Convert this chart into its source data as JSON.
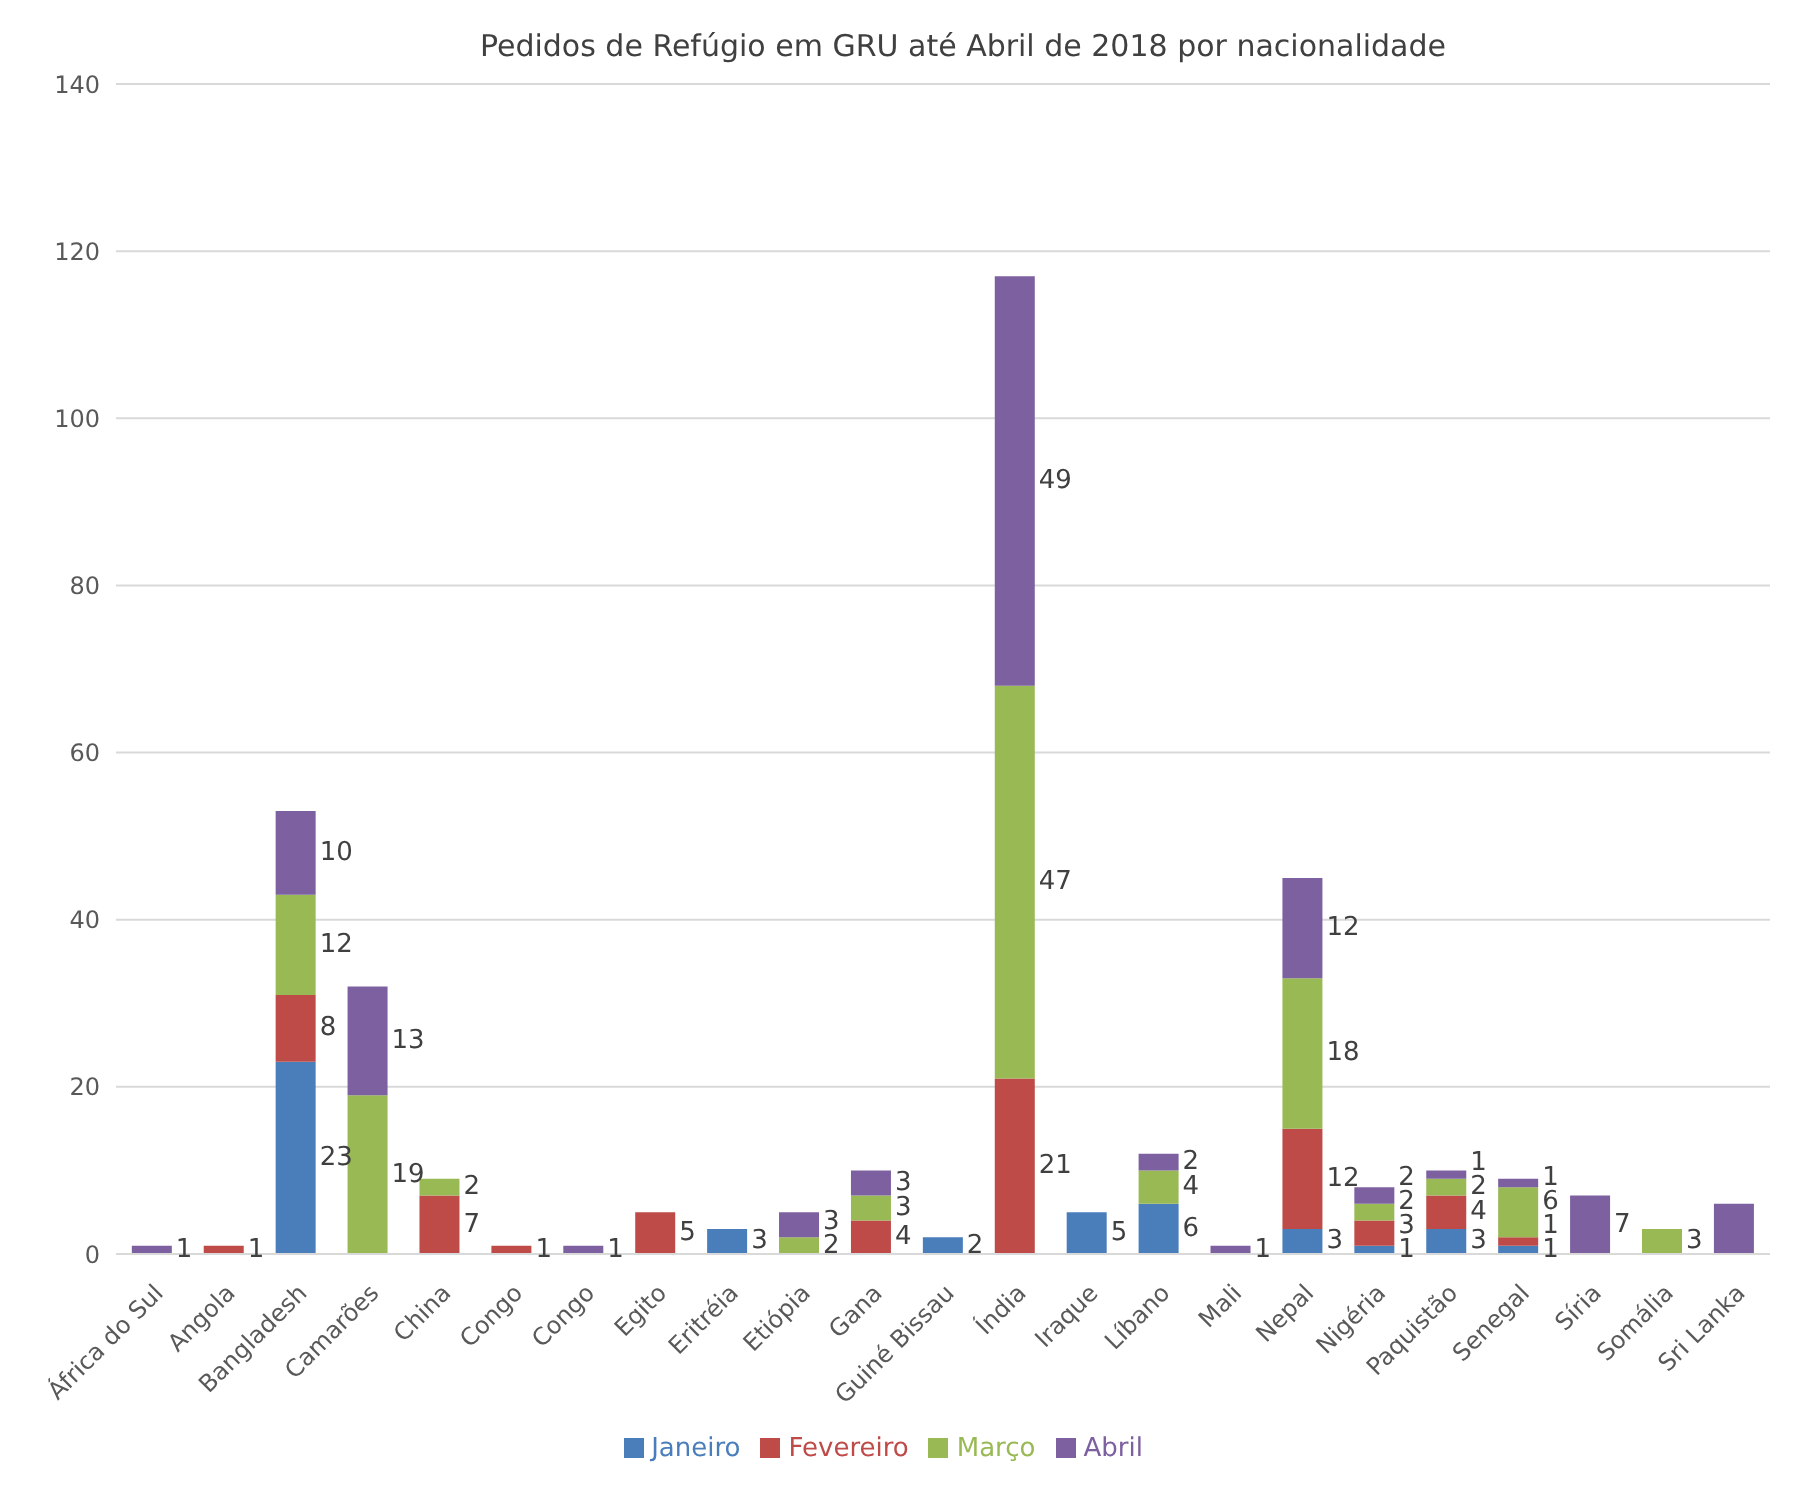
{
  "chart_data": {
    "type": "bar",
    "stacked": true,
    "title": "Pedidos de Refúgio em GRU até Abril de 2018 por nacionalidade",
    "categories": [
      "África do Sul",
      "Angola",
      "Bangladesh",
      "Camarões",
      "China",
      "Congo",
      "Congo",
      "Egito",
      "Eritréia",
      "Etiópia",
      "Gana",
      "Guiné Bissau",
      "Índia",
      "Iraque",
      "Líbano",
      "Mali",
      "Nepal",
      "Nigéria",
      "Paquistão",
      "Senegal",
      "Síria",
      "Somália",
      "Sri Lanka"
    ],
    "series": [
      {
        "name": "Janeiro",
        "color": "#4a7ebb",
        "values": [
          null,
          null,
          23,
          null,
          null,
          null,
          null,
          null,
          3,
          null,
          null,
          2,
          null,
          5,
          6,
          null,
          3,
          1,
          3,
          1,
          null,
          null,
          null
        ],
        "value_labels": [
          null,
          null,
          "23",
          null,
          null,
          null,
          null,
          null,
          "3",
          null,
          null,
          "2",
          null,
          "5",
          "6",
          null,
          "3",
          "1",
          "3",
          "1",
          null,
          null,
          null
        ]
      },
      {
        "name": "Fevereiro",
        "color": "#be4b48",
        "values": [
          null,
          1,
          8,
          null,
          7,
          1,
          null,
          5,
          null,
          null,
          4,
          null,
          21,
          null,
          null,
          null,
          12,
          3,
          4,
          1,
          null,
          null,
          null
        ],
        "value_labels": [
          null,
          "1",
          "8",
          null,
          "7",
          "1",
          null,
          "5",
          null,
          null,
          "4",
          null,
          "21",
          null,
          null,
          null,
          "12",
          "3",
          "4",
          "1",
          null,
          null,
          null
        ]
      },
      {
        "name": "Março",
        "color": "#98b954",
        "values": [
          null,
          null,
          12,
          19,
          2,
          null,
          null,
          null,
          null,
          2,
          3,
          null,
          47,
          null,
          4,
          null,
          18,
          2,
          2,
          6,
          null,
          3,
          null
        ],
        "value_labels": [
          null,
          null,
          "12",
          "19",
          "2",
          null,
          null,
          null,
          null,
          "2",
          "3",
          null,
          "47",
          null,
          "4",
          null,
          "18",
          "2",
          "2",
          "6",
          null,
          "3",
          null
        ]
      },
      {
        "name": "Abril",
        "color": "#7d60a0",
        "values": [
          1,
          null,
          10,
          13,
          null,
          null,
          1,
          null,
          null,
          3,
          3,
          null,
          49,
          null,
          2,
          1,
          12,
          2,
          1,
          1,
          7,
          null,
          6
        ],
        "value_labels": [
          "1",
          null,
          "10",
          "13",
          null,
          null,
          "1",
          null,
          null,
          "3",
          "3",
          null,
          "49",
          null,
          "2",
          "1",
          "12",
          "2",
          "1",
          "1",
          "7",
          null,
          null
        ]
      }
    ],
    "ylim": [
      0,
      140
    ],
    "yticks": [
      0,
      20,
      40,
      60,
      80,
      100,
      120,
      140
    ],
    "grid": "y",
    "legend": "bottom"
  }
}
